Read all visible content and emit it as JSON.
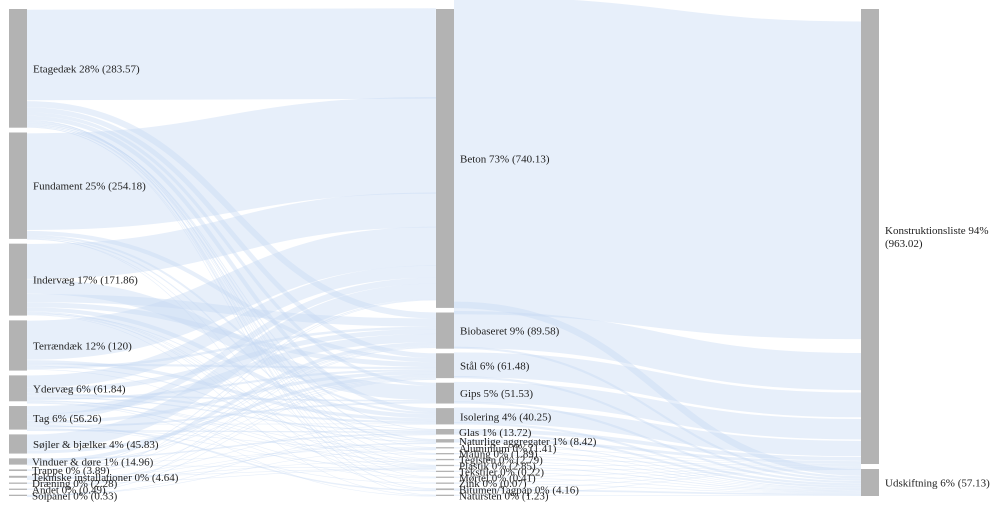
{
  "chart_data": {
    "type": "sankey",
    "colors": {
      "node": "#b3b3b3",
      "link": "#c5d8f2",
      "text": "#222222"
    },
    "columns": [
      [
        {
          "id": "etagedaek",
          "label": "Etagedæk 28% (283.57)",
          "value": 283.57
        },
        {
          "id": "fundament",
          "label": "Fundament 25% (254.18)",
          "value": 254.18
        },
        {
          "id": "indervaeg",
          "label": "Indervæg 17% (171.86)",
          "value": 171.86
        },
        {
          "id": "terraendaek",
          "label": "Terrændæk 12% (120)",
          "value": 120
        },
        {
          "id": "ydervaeg",
          "label": "Ydervæg 6% (61.84)",
          "value": 61.84
        },
        {
          "id": "tag",
          "label": "Tag 6% (56.26)",
          "value": 56.26
        },
        {
          "id": "sojler",
          "label": "Søjler & bjælker 4% (45.83)",
          "value": 45.83
        },
        {
          "id": "vinduer",
          "label": "Vinduer & døre 1% (14.96)",
          "value": 14.96
        },
        {
          "id": "trappe",
          "label": "Trappe 0% (3.89)",
          "value": 3.89
        },
        {
          "id": "tekniske",
          "label": "Tekniske installationer 0% (4.64)",
          "value": 4.64
        },
        {
          "id": "draening",
          "label": "Dræning 0% (2.28)",
          "value": 2.28
        },
        {
          "id": "andet",
          "label": "Andet 0% (0.49)",
          "value": 0.49
        },
        {
          "id": "solpanel",
          "label": "Solpanel 0% (0.33)",
          "value": 0.33
        }
      ],
      [
        {
          "id": "beton",
          "label": "Beton 73% (740.13)",
          "value": 740.13
        },
        {
          "id": "biobaseret",
          "label": "Biobaseret 9% (89.58)",
          "value": 89.58
        },
        {
          "id": "staal",
          "label": "Stål 6% (61.48)",
          "value": 61.48
        },
        {
          "id": "gips",
          "label": "Gips 5% (51.53)",
          "value": 51.53
        },
        {
          "id": "isolering",
          "label": "Isolering 4% (40.25)",
          "value": 40.25
        },
        {
          "id": "glas",
          "label": "Glas 1% (13.72)",
          "value": 13.72
        },
        {
          "id": "naturlige",
          "label": "Naturlige aggregater 1% (8.42)",
          "value": 8.42
        },
        {
          "id": "aluminium",
          "label": "Aluminium 0% (1.41)",
          "value": 1.41
        },
        {
          "id": "maling",
          "label": "Maling 0% (1.89)",
          "value": 1.89
        },
        {
          "id": "teglsten",
          "label": "Teglsten 0% (2.79)",
          "value": 2.79
        },
        {
          "id": "plastik",
          "label": "Plastik 0% (2.85)",
          "value": 2.85
        },
        {
          "id": "tekstiler",
          "label": "Tekstiler 0% (0.22)",
          "value": 0.22
        },
        {
          "id": "mortel",
          "label": "Mørtel 0% (0.41)",
          "value": 0.41
        },
        {
          "id": "zink",
          "label": "Zink 0% (0.07)",
          "value": 0.07
        },
        {
          "id": "bitumen",
          "label": "Bitumen/Tagpap 0% (4.16)",
          "value": 4.16
        },
        {
          "id": "natursten",
          "label": "Natursten 0% (1.23)",
          "value": 1.23
        }
      ],
      [
        {
          "id": "konstruktion",
          "label": "Konstruktionsliste 94% (963.02)",
          "label_lines": [
            "Konstruktionsliste 94%",
            "(963.02)"
          ],
          "value": 963.02
        },
        {
          "id": "udskiftning",
          "label": "Udskiftning 6% (57.13)",
          "value": 57.13
        }
      ]
    ],
    "links": [
      [
        "etagedaek",
        "beton",
        220
      ],
      [
        "etagedaek",
        "biobaseret",
        15
      ],
      [
        "etagedaek",
        "staal",
        12
      ],
      [
        "etagedaek",
        "gips",
        8
      ],
      [
        "etagedaek",
        "isolering",
        10
      ],
      [
        "etagedaek",
        "bitumen",
        2
      ],
      [
        "etagedaek",
        "teglsten",
        1.5
      ],
      [
        "etagedaek",
        "maling",
        0.6
      ],
      [
        "etagedaek",
        "plastik",
        0.8
      ],
      [
        "etagedaek",
        "naturlige",
        3
      ],
      [
        "etagedaek",
        "mortel",
        0.2
      ],
      [
        "etagedaek",
        "glas",
        2
      ],
      [
        "etagedaek",
        "tekstiler",
        0.1
      ],
      [
        "etagedaek",
        "aluminium",
        0.3
      ],
      [
        "etagedaek",
        "natursten",
        0.3
      ],
      [
        "etagedaek",
        "zink",
        0.02
      ],
      [
        "fundament",
        "beton",
        235
      ],
      [
        "fundament",
        "staal",
        10
      ],
      [
        "fundament",
        "isolering",
        5
      ],
      [
        "fundament",
        "naturlige",
        3
      ],
      [
        "fundament",
        "bitumen",
        0.8
      ],
      [
        "fundament",
        "plastik",
        0.4
      ],
      [
        "indervaeg",
        "beton",
        85
      ],
      [
        "indervaeg",
        "gips",
        35
      ],
      [
        "indervaeg",
        "biobaseret",
        20
      ],
      [
        "indervaeg",
        "staal",
        12
      ],
      [
        "indervaeg",
        "isolering",
        10
      ],
      [
        "indervaeg",
        "maling",
        1
      ],
      [
        "indervaeg",
        "teglsten",
        0.9
      ],
      [
        "indervaeg",
        "mortel",
        0.2
      ],
      [
        "indervaeg",
        "glas",
        2
      ],
      [
        "indervaeg",
        "plastik",
        0.5
      ],
      [
        "indervaeg",
        "natursten",
        0.4
      ],
      [
        "terraendaek",
        "beton",
        95
      ],
      [
        "terraendaek",
        "isolering",
        8
      ],
      [
        "terraendaek",
        "staal",
        5
      ],
      [
        "terraendaek",
        "naturlige",
        2.4
      ],
      [
        "terraendaek",
        "biobaseret",
        6
      ],
      [
        "terraendaek",
        "plastik",
        0.6
      ],
      [
        "ydervaeg",
        "beton",
        30
      ],
      [
        "ydervaeg",
        "biobaseret",
        12
      ],
      [
        "ydervaeg",
        "isolering",
        5
      ],
      [
        "ydervaeg",
        "gips",
        4
      ],
      [
        "ydervaeg",
        "glas",
        3
      ],
      [
        "ydervaeg",
        "staal",
        5
      ],
      [
        "ydervaeg",
        "teglsten",
        0.39
      ],
      [
        "ydervaeg",
        "maling",
        0.29
      ],
      [
        "ydervaeg",
        "aluminium",
        0.5
      ],
      [
        "ydervaeg",
        "mortel",
        0.01
      ],
      [
        "ydervaeg",
        "natursten",
        0.53
      ],
      [
        "ydervaeg",
        "tekstiler",
        0.12
      ],
      [
        "tag",
        "biobaseret",
        20
      ],
      [
        "tag",
        "beton",
        15
      ],
      [
        "tag",
        "staal",
        8
      ],
      [
        "tag",
        "isolering",
        1.25
      ],
      [
        "tag",
        "bitumen",
        3.36
      ],
      [
        "tag",
        "gips",
        4.53
      ],
      [
        "tag",
        "plastik",
        0.65
      ],
      [
        "tag",
        "zink",
        0.05
      ],
      [
        "tag",
        "aluminium",
        0.32
      ],
      [
        "tag",
        "glas",
        3.1
      ],
      [
        "sojler",
        "beton",
        38.13
      ],
      [
        "sojler",
        "staal",
        7.7
      ],
      [
        "vinduer",
        "glas",
        3.62
      ],
      [
        "vinduer",
        "biobaseret",
        8.58
      ],
      [
        "vinduer",
        "aluminium",
        0.29
      ],
      [
        "vinduer",
        "staal",
        1.78
      ],
      [
        "vinduer",
        "plastik",
        0.69
      ],
      [
        "trappe",
        "beton",
        2
      ],
      [
        "trappe",
        "biobaseret",
        1.89
      ],
      [
        "tekniske",
        "biobaseret",
        1.2
      ],
      [
        "tekniske",
        "staal",
        0.3
      ],
      [
        "tekniske",
        "plastik",
        0.3
      ],
      [
        "tekniske",
        "naturlige",
        0.94
      ],
      [
        "tekniske",
        "teglsten",
        0.9
      ],
      [
        "tekniske",
        "beton",
        0.5
      ],
      [
        "tekniske",
        "isolering",
        0.5
      ],
      [
        "draening",
        "naturlige",
        2.08
      ],
      [
        "draening",
        "plastik",
        0.2
      ],
      [
        "andet",
        "staal",
        0.19
      ],
      [
        "andet",
        "biobaseret",
        0.3
      ],
      [
        "solpanel",
        "aluminium",
        0
      ],
      [
        "solpanel",
        "glas",
        0
      ],
      [
        "solpanel",
        "staal",
        0.01
      ],
      [
        "solpanel",
        "biobaseret",
        0.32
      ],
      [
        "beton",
        "konstruktion",
        725.13
      ],
      [
        "beton",
        "udskiftning",
        15
      ],
      [
        "biobaseret",
        "konstruktion",
        84.58
      ],
      [
        "biobaseret",
        "udskiftning",
        5
      ],
      [
        "staal",
        "konstruktion",
        56.48
      ],
      [
        "staal",
        "udskiftning",
        5
      ],
      [
        "gips",
        "konstruktion",
        46.53
      ],
      [
        "gips",
        "udskiftning",
        5
      ],
      [
        "isolering",
        "konstruktion",
        35.25
      ],
      [
        "isolering",
        "udskiftning",
        5
      ],
      [
        "glas",
        "konstruktion",
        8.72
      ],
      [
        "glas",
        "udskiftning",
        5
      ],
      [
        "naturlige",
        "konstruktion",
        6.42
      ],
      [
        "naturlige",
        "udskiftning",
        2
      ],
      [
        "aluminium",
        "konstruktion",
        0.41
      ],
      [
        "aluminium",
        "udskiftning",
        1
      ],
      [
        "maling",
        "konstruktion",
        0.39
      ],
      [
        "maling",
        "udskiftning",
        1.5
      ],
      [
        "teglsten",
        "konstruktion",
        1.79
      ],
      [
        "teglsten",
        "udskiftning",
        1
      ],
      [
        "plastik",
        "konstruktion",
        0.85
      ],
      [
        "plastik",
        "udskiftning",
        2
      ],
      [
        "tekstiler",
        "konstruktion",
        0.02
      ],
      [
        "tekstiler",
        "udskiftning",
        0.2
      ],
      [
        "mortel",
        "konstruktion",
        0.21
      ],
      [
        "mortel",
        "udskiftning",
        0.2
      ],
      [
        "zink",
        "konstruktion",
        0.02
      ],
      [
        "zink",
        "udskiftning",
        0.05
      ],
      [
        "bitumen",
        "konstruktion",
        0.16
      ],
      [
        "bitumen",
        "udskiftning",
        4
      ],
      [
        "natursten",
        "konstruktion",
        0.23
      ],
      [
        "natursten",
        "udskiftning",
        1
      ]
    ]
  }
}
